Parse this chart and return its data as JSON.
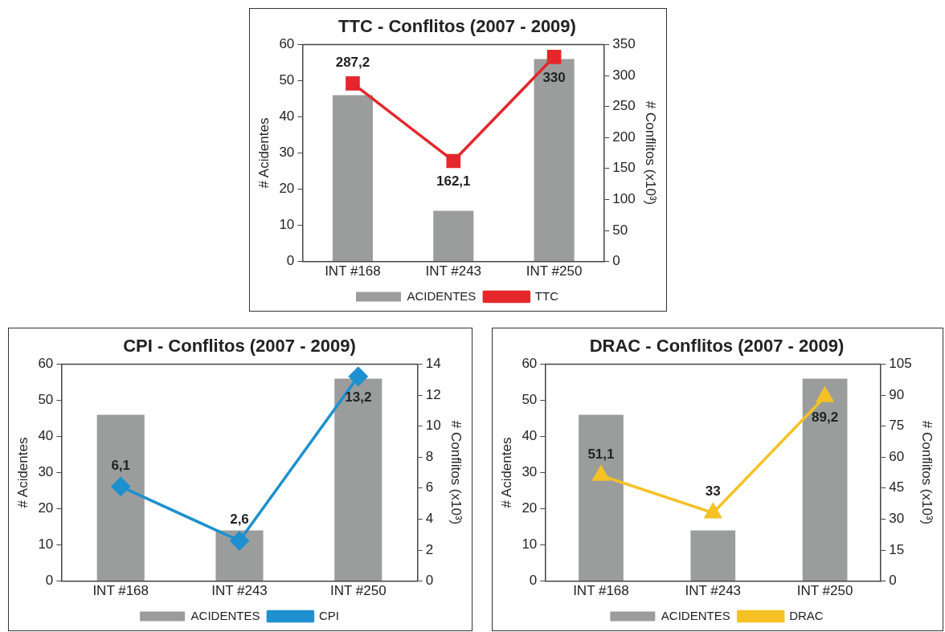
{
  "chart_data": [
    {
      "type": "bar",
      "title": "TTC - Conflitos (2007 - 2009)",
      "categories": [
        "INT #168",
        "INT #243",
        "INT #250"
      ],
      "ylabel": "# Acidentes",
      "y2label": "# Conflitos (x10³)",
      "ylim": [
        0,
        60
      ],
      "yticks": [
        0,
        10,
        20,
        30,
        40,
        50,
        60
      ],
      "y2lim": [
        0,
        350
      ],
      "y2ticks": [
        0,
        50,
        100,
        150,
        200,
        250,
        300,
        350
      ],
      "grid": false,
      "legend": "bottom",
      "series": [
        {
          "name": "ACIDENTES",
          "color": "#9b9d9c",
          "values": [
            46,
            14,
            56
          ]
        },
        {
          "name": "TTC",
          "type": "line",
          "axis": "y2",
          "marker": "square",
          "color": "#e5262b",
          "values": [
            287.2,
            162.1,
            330
          ],
          "value_labels": [
            "287,2",
            "162,1",
            "330"
          ]
        }
      ]
    },
    {
      "type": "bar",
      "title": "CPI - Conflitos (2007 - 2009)",
      "categories": [
        "INT #168",
        "INT #243",
        "INT #250"
      ],
      "ylabel": "# Acidentes",
      "y2label": "# Conflitos (x10³)",
      "ylim": [
        0,
        60
      ],
      "yticks": [
        0,
        10,
        20,
        30,
        40,
        50,
        60
      ],
      "y2lim": [
        0,
        14
      ],
      "y2ticks": [
        0,
        2,
        4,
        6,
        8,
        10,
        12,
        14
      ],
      "grid": false,
      "legend": "bottom",
      "series": [
        {
          "name": "ACIDENTES",
          "color": "#9b9d9c",
          "values": [
            46,
            14,
            56
          ]
        },
        {
          "name": "CPI",
          "type": "line",
          "axis": "y2",
          "marker": "diamond",
          "color": "#1e90cf",
          "values": [
            6.1,
            2.6,
            13.2
          ],
          "value_labels": [
            "6,1",
            "2,6",
            "13,2"
          ]
        }
      ]
    },
    {
      "type": "bar",
      "title": "DRAC - Conflitos (2007 - 2009)",
      "categories": [
        "INT #168",
        "INT #243",
        "INT #250"
      ],
      "ylabel": "# Acidentes",
      "y2label": "# Conflitos (x10³)",
      "ylim": [
        0,
        60
      ],
      "yticks": [
        0,
        10,
        20,
        30,
        40,
        50,
        60
      ],
      "y2lim": [
        0,
        105
      ],
      "y2ticks": [
        0,
        15,
        30,
        45,
        60,
        75,
        90,
        105
      ],
      "grid": false,
      "legend": "bottom",
      "series": [
        {
          "name": "ACIDENTES",
          "color": "#9b9d9c",
          "values": [
            46,
            14,
            56
          ]
        },
        {
          "name": "DRAC",
          "type": "line",
          "axis": "y2",
          "marker": "triangle",
          "color": "#f5c124",
          "values": [
            51.1,
            33,
            89.2
          ],
          "value_labels": [
            "51,1",
            "33",
            "89,2"
          ]
        }
      ]
    }
  ]
}
